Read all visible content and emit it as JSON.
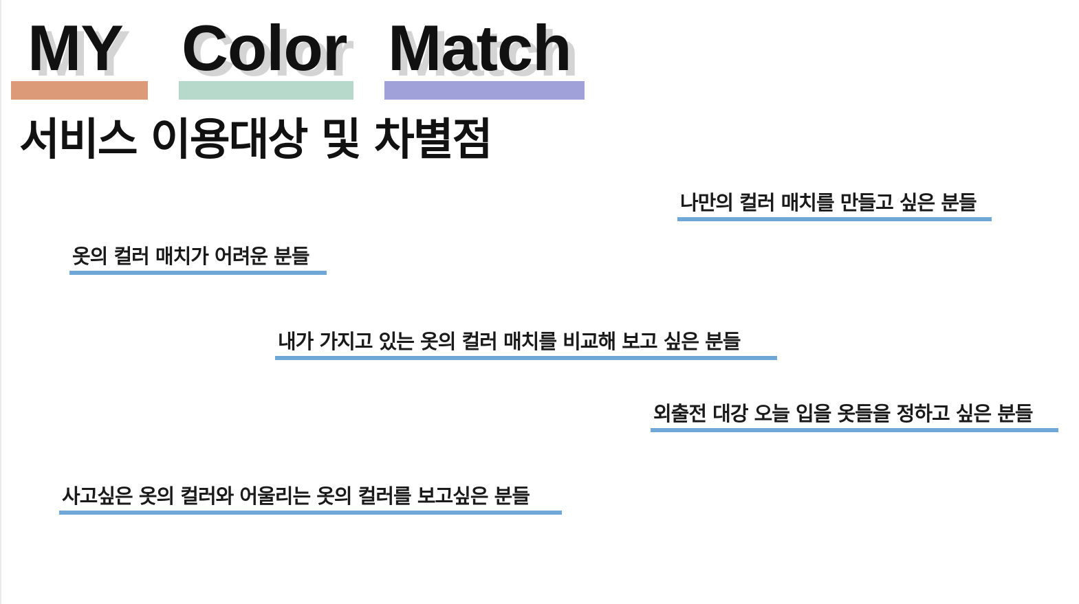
{
  "title": {
    "words": [
      {
        "text": "MY",
        "accent": "#dc9a79"
      },
      {
        "text": "Color",
        "accent": "#b6d9cb"
      },
      {
        "text": "Match",
        "accent": "#9fa1d8"
      }
    ],
    "shadow_color": "#d4d4d4"
  },
  "heading": "서비스 이용대상 및 차별점",
  "items": [
    {
      "text": "나만의 컬러 매치를 만들고 싶은 분들"
    },
    {
      "text": "옷의 컬러 매치가 어려운 분들"
    },
    {
      "text": "내가 가지고 있는 옷의 컬러 매치를 비교해 보고 싶은 분들"
    },
    {
      "text": "외출전 대강 오늘 입을 옷들을 정하고 싶은 분들"
    },
    {
      "text": "사고싶은 옷의 컬러와 어울리는 옷의 컬러를 보고싶은 분들"
    }
  ],
  "underline_color": "#6fa8d6"
}
